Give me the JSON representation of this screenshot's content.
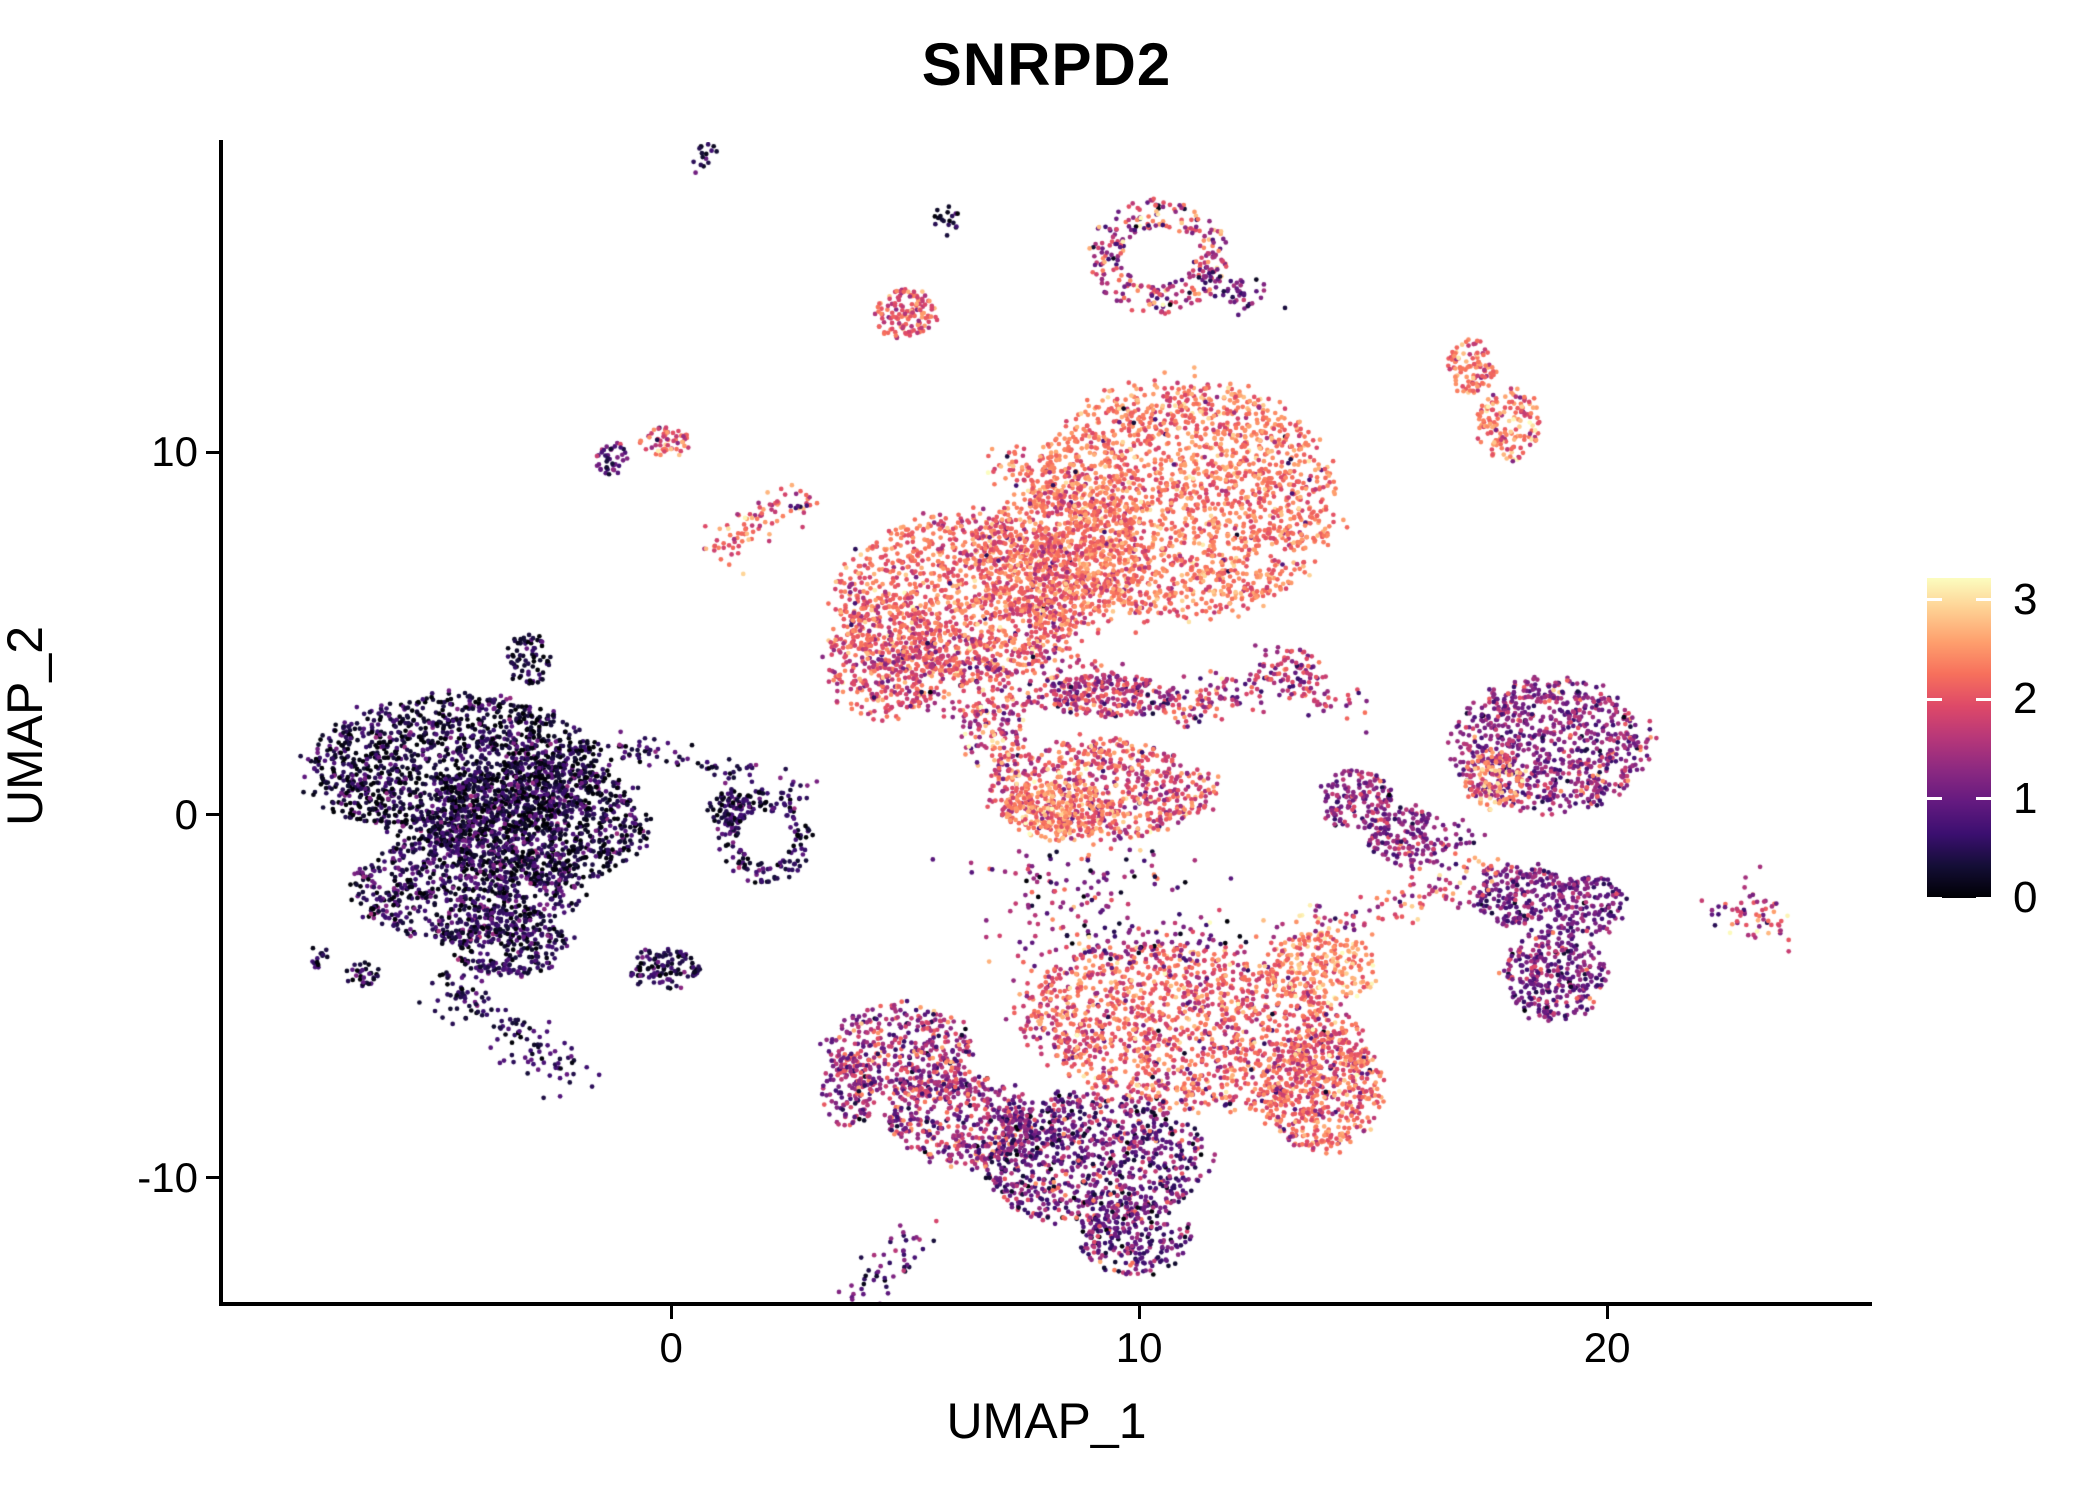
{
  "chart_data": {
    "type": "scatter",
    "title": "SNRPD2",
    "xlabel": "UMAP_1",
    "ylabel": "UMAP_2",
    "xlim": [
      -9.6,
      25.64
    ],
    "ylim": [
      -13.46,
      18.56
    ],
    "x_ticks": [
      "0",
      "10",
      "20"
    ],
    "x_tick_values": [
      0,
      10,
      20
    ],
    "y_ticks": [
      "-10",
      "0",
      "10"
    ],
    "y_tick_values": [
      -10,
      0,
      10
    ],
    "grid": false,
    "legend_position": "right",
    "point_radius_px": 2.35,
    "colorbar": {
      "tick_labels": [
        "0",
        "1",
        "2",
        "3"
      ],
      "tick_values": [
        0,
        1,
        2,
        3
      ],
      "value_max": 3.22,
      "colormap_name": "magma",
      "colormap_stops": [
        "#000004",
        "#140e36",
        "#3b0f70",
        "#641a80",
        "#8c2981",
        "#b73779",
        "#de4968",
        "#f7705c",
        "#fe9f6d",
        "#fecf92",
        "#fcfdbf"
      ]
    },
    "clusters": [
      {
        "shape": "blob",
        "cx": -4.6,
        "cy": 1.3,
        "rx": 3.1,
        "ry": 2.0,
        "n": 1500,
        "e": {
          "mean": 0.22,
          "sd": 0.3,
          "mix": [
            0.25,
            0.75,
            0.3
          ]
        }
      },
      {
        "shape": "blob",
        "cx": -2.9,
        "cy": -0.2,
        "rx": 2.3,
        "ry": 1.8,
        "n": 1100,
        "e": {
          "mean": 0.22,
          "sd": 0.3,
          "mix": [
            0.25,
            0.75,
            0.3
          ]
        }
      },
      {
        "shape": "blob",
        "cx": -4.4,
        "cy": -2.0,
        "rx": 2.4,
        "ry": 1.5,
        "n": 750,
        "e": {
          "mean": 0.35,
          "sd": 0.35,
          "mix": [
            0.3,
            0.85,
            0.3
          ]
        }
      },
      {
        "shape": "blob",
        "cx": -3.5,
        "cy": -3.5,
        "rx": 1.3,
        "ry": 1.0,
        "n": 300,
        "e": {
          "mean": 0.45,
          "sd": 0.35
        }
      },
      {
        "shape": "line",
        "x1": -4.9,
        "y1": -4.6,
        "x2": -2.1,
        "y2": -7.3,
        "w": 0.3,
        "n": 130,
        "e": {
          "mean": 0.5,
          "sd": 0.3
        }
      },
      {
        "shape": "blob",
        "cx": -7.6,
        "cy": -3.9,
        "rx": 0.28,
        "ry": 0.35,
        "n": 14,
        "e": {
          "mean": 0.55,
          "sd": 0.3
        }
      },
      {
        "shape": "blob",
        "cx": -6.6,
        "cy": -4.4,
        "rx": 0.4,
        "ry": 0.35,
        "n": 30,
        "e": {
          "mean": 0.45,
          "sd": 0.3
        }
      },
      {
        "shape": "blob",
        "cx": -3.05,
        "cy": 4.3,
        "rx": 0.45,
        "ry": 0.75,
        "n": 70,
        "e": {
          "mean": 0.3,
          "sd": 0.3
        }
      },
      {
        "shape": "line",
        "x1": -1.3,
        "y1": 1.9,
        "x2": 2.9,
        "y2": 0.75,
        "w": 0.2,
        "n": 80,
        "e": {
          "mean": 0.5,
          "sd": 0.35
        }
      },
      {
        "shape": "ring",
        "cx": 2.0,
        "cy": -0.6,
        "rx": 1.05,
        "ry": 1.3,
        "inner": 0.55,
        "n": 160,
        "e": {
          "mean": 0.55,
          "sd": 0.4
        }
      },
      {
        "shape": "blob",
        "cx": 1.3,
        "cy": 0.2,
        "rx": 0.5,
        "ry": 0.5,
        "n": 70,
        "e": {
          "mean": 0.4,
          "sd": 0.35
        }
      },
      {
        "shape": "blob",
        "cx": -0.2,
        "cy": -4.25,
        "rx": 0.8,
        "ry": 0.6,
        "n": 110,
        "e": {
          "mean": 0.4,
          "sd": 0.4
        }
      },
      {
        "shape": "blob",
        "cx": 10.9,
        "cy": 8.7,
        "rx": 3.3,
        "ry": 3.3,
        "n": 2100,
        "e": {
          "mean": 2.3,
          "sd": 0.32,
          "mix": [
            0.01,
            0.8,
            0.3
          ]
        }
      },
      {
        "shape": "blob",
        "cx": 8.4,
        "cy": 7.1,
        "rx": 1.8,
        "ry": 2.0,
        "n": 650,
        "e": {
          "mean": 2.2,
          "sd": 0.34,
          "mix": [
            0.02,
            0.9,
            0.3
          ]
        }
      },
      {
        "shape": "blob",
        "cx": 6.3,
        "cy": 6.0,
        "rx": 2.8,
        "ry": 2.3,
        "n": 1250,
        "e": {
          "mean": 2.15,
          "sd": 0.36,
          "mix": [
            0.02,
            0.9,
            0.3
          ]
        }
      },
      {
        "shape": "blob",
        "cx": 4.5,
        "cy": 4.3,
        "rx": 1.2,
        "ry": 1.7,
        "n": 330,
        "e": {
          "mean": 2.05,
          "sd": 0.4,
          "mix": [
            0.03,
            0.9,
            0.3
          ]
        }
      },
      {
        "shape": "blob",
        "cx": 6.7,
        "cy": 3.8,
        "rx": 2.6,
        "ry": 1.1,
        "n": 280,
        "e": {
          "mean": 1.85,
          "sd": 0.5,
          "mix": [
            0.06,
            0.8,
            0.3
          ]
        }
      },
      {
        "shape": "line",
        "x1": 7.0,
        "y1": 9.75,
        "x2": 8.6,
        "y2": 9.1,
        "w": 0.28,
        "n": 70,
        "e": {
          "mean": 2.2,
          "sd": 0.35,
          "mix": [
            0.04,
            0.7,
            0.2
          ]
        }
      },
      {
        "shape": "blob",
        "cx": 9.4,
        "cy": 3.3,
        "rx": 1.5,
        "ry": 0.6,
        "n": 260,
        "e": {
          "mean": 1.55,
          "sd": 0.5
        }
      },
      {
        "shape": "line",
        "x1": 10.7,
        "y1": 2.85,
        "x2": 13.4,
        "y2": 4.0,
        "w": 0.32,
        "n": 160,
        "e": {
          "mean": 1.7,
          "sd": 0.5
        }
      },
      {
        "shape": "line",
        "x1": 13.4,
        "y1": 4.0,
        "x2": 14.35,
        "y2": 2.8,
        "w": 0.28,
        "n": 55,
        "e": {
          "mean": 1.6,
          "sd": 0.5
        }
      },
      {
        "shape": "blob",
        "cx": 9.2,
        "cy": 0.7,
        "rx": 2.4,
        "ry": 1.35,
        "n": 680,
        "e": {
          "mean": 1.95,
          "sd": 0.5
        }
      },
      {
        "shape": "blob",
        "cx": 8.3,
        "cy": 0.15,
        "rx": 1.2,
        "ry": 0.85,
        "n": 240,
        "e": {
          "mean": 2.4,
          "sd": 0.33
        }
      },
      {
        "shape": "blob",
        "cx": 6.9,
        "cy": 2.2,
        "rx": 0.7,
        "ry": 1.0,
        "n": 130,
        "e": {
          "mean": 1.9,
          "sd": 0.6
        }
      },
      {
        "shape": "sparse",
        "cx": 8.7,
        "cy": -1.8,
        "rx": 2.0,
        "ry": 1.1,
        "n": 90,
        "e": {
          "mean": 1.3,
          "sd": 0.7
        }
      },
      {
        "shape": "blob",
        "cx": 4.9,
        "cy": -6.5,
        "rx": 1.55,
        "ry": 1.3,
        "n": 420,
        "e": {
          "mean": 1.35,
          "sd": 0.5,
          "mix": [
            0.12,
            2.3,
            0.3
          ]
        }
      },
      {
        "shape": "blob",
        "cx": 6.2,
        "cy": -8.4,
        "rx": 1.55,
        "ry": 1.3,
        "n": 430,
        "e": {
          "mean": 1.3,
          "sd": 0.5,
          "mix": [
            0.1,
            2.3,
            0.3
          ]
        }
      },
      {
        "shape": "blob",
        "cx": 3.8,
        "cy": -7.6,
        "rx": 0.6,
        "ry": 1.0,
        "n": 110,
        "e": {
          "mean": 1.3,
          "sd": 0.5
        }
      },
      {
        "shape": "blob",
        "cx": 11.1,
        "cy": -5.9,
        "rx": 3.7,
        "ry": 2.2,
        "rot": -12,
        "n": 1500,
        "e": {
          "mean": 2.1,
          "sd": 0.4,
          "mix": [
            0.05,
            1.0,
            0.4
          ]
        }
      },
      {
        "shape": "blob",
        "cx": 13.9,
        "cy": -7.6,
        "rx": 1.3,
        "ry": 1.7,
        "n": 480,
        "e": {
          "mean": 2.15,
          "sd": 0.4,
          "mix": [
            0.04,
            1.0,
            0.4
          ]
        }
      },
      {
        "shape": "blob",
        "cx": 13.9,
        "cy": -4.2,
        "rx": 1.2,
        "ry": 1.0,
        "n": 230,
        "e": {
          "mean": 2.45,
          "sd": 0.35
        }
      },
      {
        "shape": "blob",
        "cx": 9.0,
        "cy": -9.5,
        "rx": 2.4,
        "ry": 1.8,
        "n": 950,
        "e": {
          "mean": 0.95,
          "sd": 0.5,
          "mix": [
            0.12,
            1.9,
            0.3
          ]
        }
      },
      {
        "shape": "blob",
        "cx": 9.9,
        "cy": -11.7,
        "rx": 1.2,
        "ry": 1.0,
        "n": 230,
        "e": {
          "mean": 0.9,
          "sd": 0.5,
          "mix": [
            0.08,
            1.8,
            0.3
          ]
        }
      },
      {
        "shape": "sparse",
        "cx": 9.6,
        "cy": -3.5,
        "rx": 2.6,
        "ry": 0.9,
        "n": 140,
        "e": {
          "mean": 1.5,
          "sd": 0.8
        }
      },
      {
        "shape": "line",
        "x1": 5.4,
        "y1": -11.4,
        "x2": 4.0,
        "y2": -13.3,
        "w": 0.28,
        "n": 50,
        "e": {
          "mean": 0.8,
          "sd": 0.5
        }
      },
      {
        "shape": "blob",
        "cx": 18.8,
        "cy": 1.9,
        "rx": 2.1,
        "ry": 1.85,
        "n": 800,
        "e": {
          "mean": 1.25,
          "sd": 0.38,
          "mix": [
            0.05,
            2.2,
            0.3
          ]
        }
      },
      {
        "shape": "blob",
        "cx": 17.6,
        "cy": 0.95,
        "rx": 0.65,
        "ry": 0.8,
        "n": 120,
        "e": {
          "mean": 2.3,
          "sd": 0.4
        }
      },
      {
        "shape": "line",
        "x1": 17.1,
        "y1": -0.3,
        "x2": 16.1,
        "y2": -1.3,
        "w": 0.25,
        "n": 35,
        "e": {
          "mean": 1.4,
          "sd": 0.5
        }
      },
      {
        "shape": "blob",
        "cx": 18.1,
        "cy": -2.2,
        "rx": 1.0,
        "ry": 0.85,
        "n": 210,
        "e": {
          "mean": 1.05,
          "sd": 0.35
        }
      },
      {
        "shape": "blob",
        "cx": 19.6,
        "cy": -2.5,
        "rx": 0.8,
        "ry": 0.85,
        "n": 150,
        "e": {
          "mean": 1.05,
          "sd": 0.35
        }
      },
      {
        "shape": "blob",
        "cx": 18.9,
        "cy": -4.4,
        "rx": 1.1,
        "ry": 1.3,
        "n": 340,
        "e": {
          "mean": 1.05,
          "sd": 0.38,
          "mix": [
            0.06,
            2.0,
            0.3
          ]
        }
      },
      {
        "shape": "blob",
        "cx": 14.6,
        "cy": 0.4,
        "rx": 0.8,
        "ry": 0.85,
        "n": 150,
        "e": {
          "mean": 1.3,
          "sd": 0.4
        }
      },
      {
        "shape": "blob",
        "cx": 15.7,
        "cy": -0.6,
        "rx": 0.8,
        "ry": 0.85,
        "n": 150,
        "e": {
          "mean": 1.25,
          "sd": 0.4
        }
      },
      {
        "shape": "line",
        "x1": 13.2,
        "y1": -3.3,
        "x2": 17.5,
        "y2": -1.8,
        "w": 0.38,
        "n": 120,
        "e": {
          "mean": 1.9,
          "sd": 0.6
        }
      },
      {
        "shape": "line",
        "x1": 22.8,
        "y1": -2.5,
        "x2": 23.6,
        "y2": -3.1,
        "w": 0.32,
        "n": 55,
        "e": {
          "mean": 1.8,
          "sd": 0.5
        }
      },
      {
        "shape": "sparse",
        "cx": 22.3,
        "cy": -2.6,
        "rx": 0.3,
        "ry": 0.4,
        "n": 6,
        "e": {
          "mean": 0.8,
          "sd": 0.3
        }
      },
      {
        "shape": "blob",
        "cx": 5.9,
        "cy": 16.4,
        "rx": 0.28,
        "ry": 0.45,
        "n": 18,
        "e": {
          "mean": 0.45,
          "sd": 0.3
        }
      },
      {
        "shape": "blob",
        "cx": 0.7,
        "cy": 18.1,
        "rx": 0.3,
        "ry": 0.5,
        "n": 16,
        "e": {
          "mean": 0.5,
          "sd": 0.35
        }
      },
      {
        "shape": "ring",
        "cx": 10.4,
        "cy": 15.4,
        "rx": 1.5,
        "ry": 1.6,
        "inner": 0.5,
        "n": 270,
        "e": {
          "mean": 1.7,
          "sd": 0.7
        }
      },
      {
        "shape": "line",
        "x1": 11.7,
        "y1": 14.8,
        "x2": 12.6,
        "y2": 14.2,
        "w": 0.28,
        "n": 45,
        "e": {
          "mean": 1.0,
          "sd": 0.4
        }
      },
      {
        "shape": "blob",
        "cx": 5.0,
        "cy": 13.8,
        "rx": 0.68,
        "ry": 0.72,
        "n": 130,
        "e": {
          "mean": 2.1,
          "sd": 0.35
        }
      },
      {
        "shape": "blob",
        "cx": 17.1,
        "cy": 12.3,
        "rx": 0.5,
        "ry": 0.8,
        "n": 100,
        "e": {
          "mean": 2.2,
          "sd": 0.35
        }
      },
      {
        "shape": "blob",
        "cx": 17.9,
        "cy": 10.75,
        "rx": 0.68,
        "ry": 1.0,
        "n": 150,
        "e": {
          "mean": 2.25,
          "sd": 0.4,
          "mix": [
            0.06,
            3.0,
            0.15
          ]
        }
      },
      {
        "shape": "blob",
        "cx": -1.25,
        "cy": 9.85,
        "rx": 0.38,
        "ry": 0.5,
        "n": 40,
        "e": {
          "mean": 0.9,
          "sd": 0.45
        }
      },
      {
        "shape": "blob",
        "cx": -0.15,
        "cy": 10.3,
        "rx": 0.55,
        "ry": 0.4,
        "n": 60,
        "e": {
          "mean": 2.0,
          "sd": 0.4,
          "mix": [
            0.06,
            0.6,
            0.2
          ]
        }
      },
      {
        "shape": "line",
        "x1": 1.0,
        "y1": 7.3,
        "x2": 2.7,
        "y2": 8.8,
        "w": 0.28,
        "n": 85,
        "e": {
          "mean": 2.2,
          "sd": 0.4
        }
      },
      {
        "shape": "blob",
        "cx": 2.75,
        "cy": 8.55,
        "rx": 0.25,
        "ry": 0.2,
        "n": 5,
        "e": {
          "mean": 0.8,
          "sd": 0.2
        }
      }
    ]
  }
}
